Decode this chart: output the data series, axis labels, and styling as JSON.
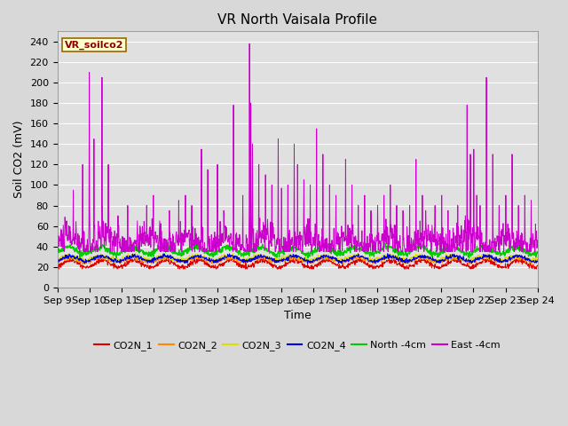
{
  "title": "VR North Vaisala Profile",
  "xlabel": "Time",
  "ylabel": "Soil CO2 (mV)",
  "ylim": [
    0,
    250
  ],
  "yticks": [
    0,
    20,
    40,
    60,
    80,
    100,
    120,
    140,
    160,
    180,
    200,
    220,
    240
  ],
  "date_start": 9,
  "date_end": 24,
  "fig_bg_color": "#d8d8d8",
  "plot_bg_color": "#e0e0e0",
  "legend_label": "VR_soilco2",
  "colors": {
    "CO2N_1": "#dd0000",
    "CO2N_2": "#ff8800",
    "CO2N_3": "#dddd00",
    "CO2N_4": "#0000dd",
    "North -4cm": "#00cc00",
    "East -4cm": "#cc00cc"
  },
  "title_fontsize": 11,
  "axis_fontsize": 9,
  "tick_fontsize": 8,
  "legend_fontsize": 8,
  "n_days": 15,
  "pts_per_day": 96
}
